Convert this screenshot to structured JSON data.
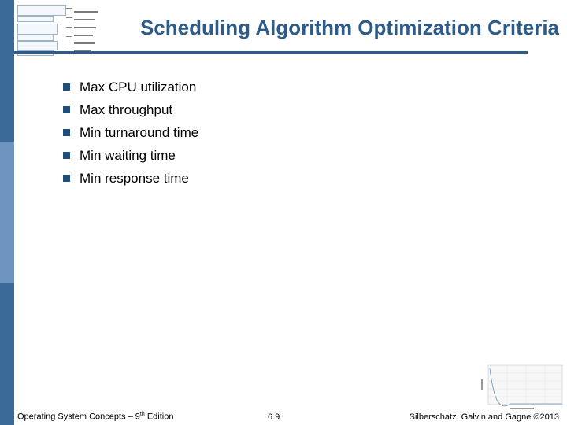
{
  "slide": {
    "title": "Scheduling Algorithm Optimization Criteria",
    "bullets": [
      "Max CPU utilization",
      "Max throughput",
      "Min turnaround time",
      "Min waiting time",
      "Min response time"
    ]
  },
  "footer": {
    "book": "Operating System Concepts – 9",
    "edition_sup": "th",
    "edition_word": " Edition",
    "page": "6.9",
    "copyright": "Silberschatz, Galvin and Gagne ©2013"
  },
  "colors": {
    "accent": "#2e5c8a",
    "left_bar": "#3b6a99",
    "bullet": "#1f4e79"
  }
}
